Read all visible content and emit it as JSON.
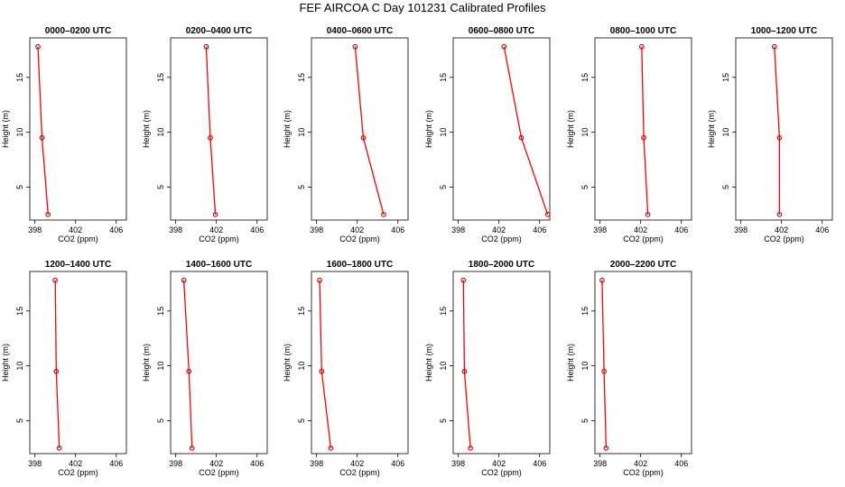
{
  "title": "FEF AIRCOA C  Day 101231  Calibrated Profiles",
  "chart_data": {
    "type": "line",
    "xlabel": "CO2 (ppm)",
    "ylabel": "Height (m)",
    "xlim": [
      397.5,
      407.0
    ],
    "ylim": [
      2.0,
      18.6
    ],
    "xticks": [
      398,
      402,
      406
    ],
    "yticks": [
      5,
      10,
      15
    ],
    "series_color": "#ff0000",
    "marker_color": "#cc0000",
    "panels": [
      {
        "title": "0000–0200 UTC",
        "points": [
          {
            "co2": 398.3,
            "height": 17.8
          },
          {
            "co2": 398.7,
            "height": 9.5
          },
          {
            "co2": 399.3,
            "height": 2.5
          }
        ]
      },
      {
        "title": "0200–0400 UTC",
        "points": [
          {
            "co2": 401.0,
            "height": 17.8
          },
          {
            "co2": 401.4,
            "height": 9.5
          },
          {
            "co2": 401.9,
            "height": 2.5
          }
        ]
      },
      {
        "title": "0400–0600 UTC",
        "points": [
          {
            "co2": 401.8,
            "height": 17.8
          },
          {
            "co2": 402.6,
            "height": 9.5
          },
          {
            "co2": 404.6,
            "height": 2.5
          }
        ]
      },
      {
        "title": "0600–0800 UTC",
        "points": [
          {
            "co2": 402.5,
            "height": 17.8
          },
          {
            "co2": 404.2,
            "height": 9.5
          },
          {
            "co2": 406.8,
            "height": 2.5
          }
        ]
      },
      {
        "title": "0800–1000 UTC",
        "points": [
          {
            "co2": 402.1,
            "height": 17.8
          },
          {
            "co2": 402.3,
            "height": 9.5
          },
          {
            "co2": 402.7,
            "height": 2.5
          }
        ]
      },
      {
        "title": "1000–1200 UTC",
        "points": [
          {
            "co2": 401.3,
            "height": 17.8
          },
          {
            "co2": 401.8,
            "height": 9.5
          },
          {
            "co2": 401.8,
            "height": 2.5
          }
        ]
      },
      {
        "title": "1200–1400 UTC",
        "points": [
          {
            "co2": 400.0,
            "height": 17.8
          },
          {
            "co2": 400.1,
            "height": 9.5
          },
          {
            "co2": 400.4,
            "height": 2.5
          }
        ]
      },
      {
        "title": "1400–1600 UTC",
        "points": [
          {
            "co2": 398.8,
            "height": 17.8
          },
          {
            "co2": 399.3,
            "height": 9.5
          },
          {
            "co2": 399.6,
            "height": 2.5
          }
        ]
      },
      {
        "title": "1600–1800 UTC",
        "points": [
          {
            "co2": 398.3,
            "height": 17.8
          },
          {
            "co2": 398.5,
            "height": 9.5
          },
          {
            "co2": 399.4,
            "height": 2.5
          }
        ]
      },
      {
        "title": "1800–2000 UTC",
        "points": [
          {
            "co2": 398.5,
            "height": 17.8
          },
          {
            "co2": 398.6,
            "height": 9.5
          },
          {
            "co2": 399.2,
            "height": 2.5
          }
        ]
      },
      {
        "title": "2000–2200 UTC",
        "points": [
          {
            "co2": 398.2,
            "height": 17.8
          },
          {
            "co2": 398.4,
            "height": 9.5
          },
          {
            "co2": 398.6,
            "height": 2.5
          }
        ]
      }
    ]
  }
}
